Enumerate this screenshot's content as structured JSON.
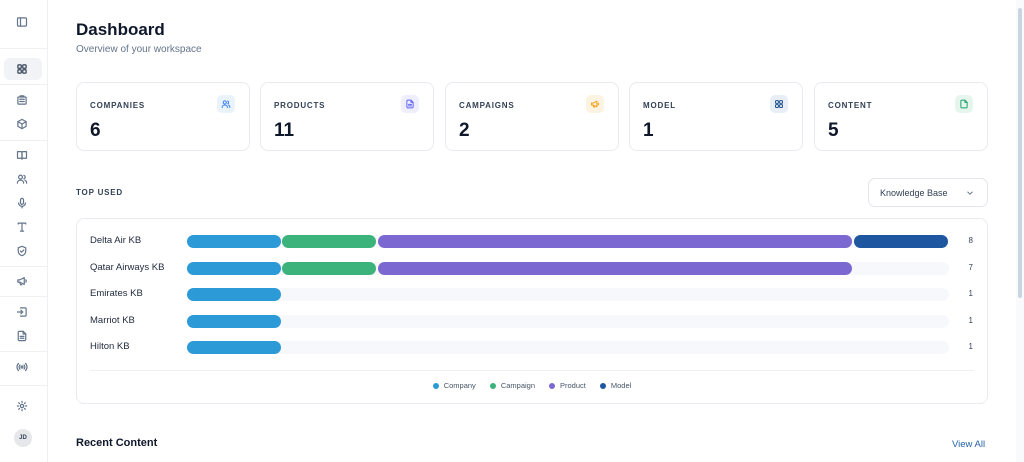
{
  "sidebar": {
    "icons": [
      "sidebar-toggle-icon",
      "dashboard-icon",
      "building-icon",
      "box-icon",
      "book-icon",
      "users-icon",
      "microphone-icon",
      "type-icon",
      "shield-icon",
      "megaphone-icon",
      "import-icon",
      "file-icon",
      "broadcast-icon",
      "settings-icon"
    ],
    "avatar_initials": "JD"
  },
  "header": {
    "title": "Dashboard",
    "subtitle": "Overview of your workspace"
  },
  "stats": [
    {
      "label": "COMPANIES",
      "value": "6",
      "icon": "users-icon",
      "color": "#3b82f6",
      "bg": "#eaf2fc"
    },
    {
      "label": "PRODUCTS",
      "value": "11",
      "icon": "file-icon",
      "color": "#6366f1",
      "bg": "#eeeefc"
    },
    {
      "label": "CAMPAIGNS",
      "value": "2",
      "icon": "megaphone-icon",
      "color": "#f59e0b",
      "bg": "#fdf3e3"
    },
    {
      "label": "MODEL",
      "value": "1",
      "icon": "grid-icon",
      "color": "#1e4f8f",
      "bg": "#e8eef6"
    },
    {
      "label": "CONTENT",
      "value": "5",
      "icon": "file-icon",
      "color": "#22a06b",
      "bg": "#e6f6ee"
    }
  ],
  "top_used": {
    "label": "TOP USED",
    "select_value": "Knowledge Base"
  },
  "chart_data": {
    "type": "bar",
    "orientation": "horizontal",
    "stacked": true,
    "categories": [
      "Delta Air KB",
      "Qatar Airways KB",
      "Emirates KB",
      "Marriot KB",
      "Hilton KB"
    ],
    "totals": [
      8,
      7,
      1,
      1,
      1
    ],
    "series": [
      {
        "name": "Company",
        "color": "#2b9ad6",
        "values": [
          1,
          1,
          1,
          1,
          1
        ]
      },
      {
        "name": "Campaign",
        "color": "#3cb37b",
        "values": [
          1,
          1,
          0,
          0,
          0
        ]
      },
      {
        "name": "Product",
        "color": "#7b68d0",
        "values": [
          5,
          5,
          0,
          0,
          0
        ]
      },
      {
        "name": "Model",
        "color": "#1e57a0",
        "values": [
          1,
          0,
          0,
          0,
          0
        ]
      }
    ],
    "xlim": [
      0,
      8
    ],
    "legend": "bottom-center"
  },
  "recent": {
    "title": "Recent Content",
    "view_all": "View All"
  }
}
